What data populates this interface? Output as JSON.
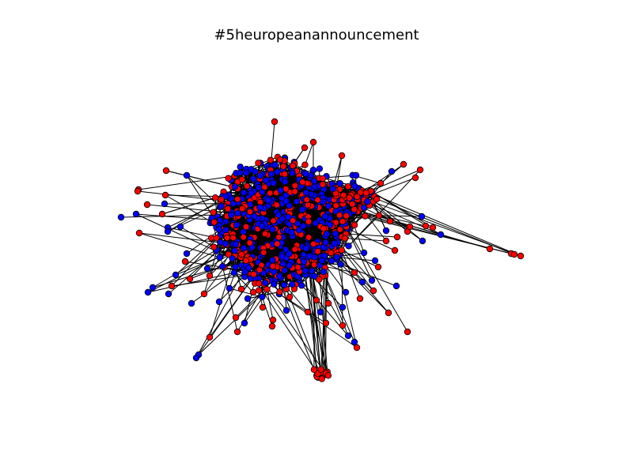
{
  "title": "#5heuropeanannouncement",
  "node_colors": {
    "group_a": "#ff0000",
    "group_b": "#0000ff",
    "outline": "#000000"
  },
  "edge_color": "#000000",
  "background": "#ffffff"
}
